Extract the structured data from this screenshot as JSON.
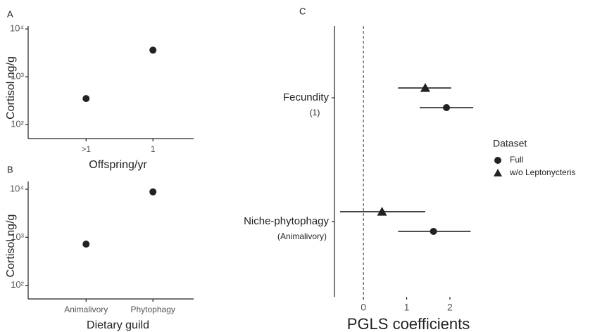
{
  "chart_data": [
    {
      "type": "scatter",
      "label": "A",
      "categories": [
        ">1",
        "1"
      ],
      "values": [
        350,
        3600
      ],
      "color": "#222222",
      "ylabel": "Cortisol ng/g",
      "xlabel": "Offspring/yr",
      "log_scale": true,
      "ylim": [
        51,
        11500
      ],
      "yticks": [
        {
          "value": 100,
          "label": "10²"
        },
        {
          "value": 1000,
          "label": "10³"
        },
        {
          "value": 10000,
          "label": "10⁴"
        }
      ]
    },
    {
      "type": "scatter",
      "label": "B",
      "categories": [
        "Animalivory",
        "Phytophagy"
      ],
      "values": [
        720,
        8800
      ],
      "color": "#222222",
      "ylabel": "Cortisol ng/g",
      "xlabel": "Dietary guild",
      "log_scale": true,
      "ylim": [
        52,
        14500
      ],
      "yticks": [
        {
          "value": 100,
          "label": "10²"
        },
        {
          "value": 1000,
          "label": "10³"
        },
        {
          "value": 10000,
          "label": "10⁴"
        }
      ]
    },
    {
      "type": "forest",
      "label": "C",
      "categories": [
        "Fecundity",
        "Niche-phytophagy"
      ],
      "reference_levels": [
        "(1)",
        "(Animalivory)"
      ],
      "xlabel": "PGLS coefficients",
      "xlim": [
        -0.67,
        2.75
      ],
      "xticks": [
        0,
        1,
        2
      ],
      "reference_line": 0,
      "legend_title": "Dataset",
      "series": [
        {
          "name": "Full",
          "marker": "circle",
          "color": "#222222",
          "values": [
            1.92,
            1.62
          ],
          "ci_low": [
            1.3,
            0.8
          ],
          "ci_high": [
            2.54,
            2.48
          ]
        },
        {
          "name": "w/o Leptonycteris",
          "marker": "triangle",
          "color": "#222222",
          "values": [
            1.43,
            0.43
          ],
          "ci_low": [
            0.8,
            -0.54
          ],
          "ci_high": [
            2.03,
            1.43
          ]
        }
      ]
    }
  ]
}
